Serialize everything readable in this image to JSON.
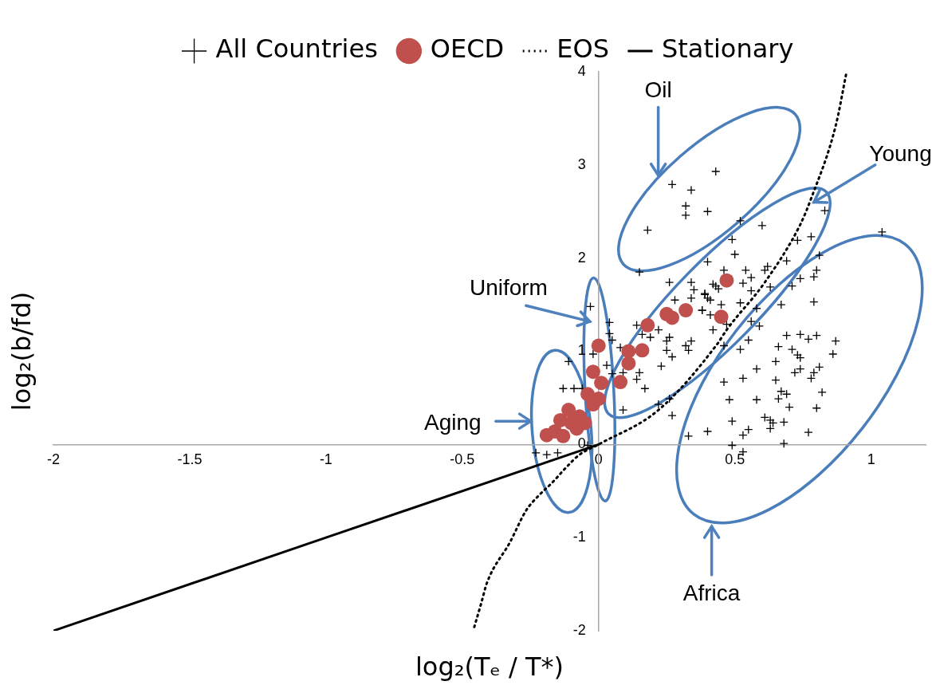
{
  "chart_data": {
    "type": "scatter",
    "xlabel": "log₂(Tₑ / T*)",
    "ylabel": "log₂(b/fd)",
    "xlim": [
      -2,
      1.2
    ],
    "xticks": [
      -2,
      -1.5,
      -1,
      -0.5,
      0,
      0.5,
      1
    ],
    "ylim": [
      -2,
      4
    ],
    "yticks": [
      -2,
      -1,
      0,
      1,
      2,
      3,
      4
    ],
    "grid": false,
    "legend": "top",
    "annotations": [
      "Oil",
      {
        "text": "Young",
        "x": 0.79,
        "y": 2.6
      },
      "Uniform",
      "Aging",
      "Africa"
    ],
    "series": [
      {
        "name": "All Countries",
        "marker": "cross",
        "color": "#000000",
        "x": [
          0.49,
          0.5,
          0.4,
          0.46,
          0.54,
          0.62,
          0.61,
          0.69,
          0.78,
          0.81,
          0.8,
          0.79,
          0.56,
          0.53,
          0.43,
          0.44,
          0.39,
          0.41,
          0.56,
          0.63,
          0.71,
          0.74,
          0.52,
          0.45,
          0.38,
          0.41,
          0.58,
          0.67,
          0.79,
          0.47,
          0.42,
          0.56,
          0.59,
          0.55,
          0.46,
          0.52,
          0.69,
          0.74,
          0.77,
          0.8,
          0.87,
          0.86,
          0.66,
          0.71,
          0.73,
          0.74,
          0.81,
          0.74,
          0.72,
          0.79,
          0.78,
          0.65,
          0.58,
          0.53,
          0.46,
          0.65,
          0.82,
          0.67,
          0.69,
          0.66,
          0.48,
          0.58,
          0.7,
          0.8,
          0.61,
          0.63,
          0.64,
          0.68,
          0.49,
          0.63,
          0.55,
          0.53,
          0.4,
          0.77,
          0.49,
          0.53,
          0.68,
          1.04,
          0.43,
          0.27,
          0.34,
          0.32,
          0.32,
          0.4,
          0.18,
          0.15,
          0.52,
          0.6,
          0.83,
          0.73,
          0.26,
          0.34,
          0.35,
          0.42,
          0.28,
          0.34,
          0.39,
          0.4,
          0.38,
          -0.03,
          0.04,
          0.04,
          0.05,
          0.14,
          0.16,
          0.19,
          0.22,
          0.26,
          0.25,
          0.25,
          0.27,
          0.32,
          0.33,
          0.34,
          0.08,
          -0.02,
          -0.11,
          0.03,
          0.23,
          0.05,
          0.09,
          0.15,
          0.14,
          0.17,
          -0.13,
          -0.09,
          -0.06,
          0.26,
          0.22,
          0.27,
          0.09,
          0.33,
          -0.23,
          -0.19,
          -0.15,
          -0.04
        ],
        "values": [
          2.2,
          2.04,
          1.96,
          1.87,
          1.87,
          1.91,
          1.87,
          1.97,
          2.23,
          2.03,
          1.87,
          1.8,
          1.79,
          1.73,
          1.7,
          1.67,
          1.61,
          1.55,
          1.65,
          1.69,
          1.7,
          1.78,
          1.52,
          1.5,
          1.44,
          1.39,
          1.46,
          1.5,
          1.53,
          1.29,
          1.23,
          1.32,
          1.27,
          1.12,
          1.06,
          1.02,
          1.17,
          1.18,
          1.13,
          1.17,
          1.11,
          0.97,
          1.05,
          1.02,
          0.96,
          0.93,
          0.83,
          0.81,
          0.77,
          0.77,
          0.71,
          0.89,
          0.81,
          0.71,
          0.67,
          0.69,
          0.56,
          0.57,
          0.54,
          0.49,
          0.48,
          0.48,
          0.4,
          0.39,
          0.29,
          0.26,
          0.23,
          0.24,
          0.25,
          0.17,
          0.16,
          0.1,
          0.14,
          0.13,
          -0.01,
          -0.08,
          0.01,
          2.28,
          2.93,
          2.79,
          2.73,
          2.56,
          2.46,
          2.5,
          2.3,
          1.85,
          2.4,
          2.35,
          2.51,
          2.19,
          1.74,
          1.74,
          1.66,
          1.72,
          1.55,
          1.57,
          1.62,
          1.57,
          1.44,
          1.48,
          1.31,
          1.19,
          1.12,
          1.28,
          1.18,
          1.15,
          1.23,
          1.15,
          1.11,
          1.01,
          0.94,
          1.06,
          1.01,
          1.11,
          1.04,
          0.97,
          0.89,
          0.85,
          0.84,
          0.76,
          0.77,
          0.77,
          0.7,
          0.6,
          0.6,
          0.6,
          0.6,
          0.49,
          0.43,
          0.31,
          0.37,
          0.09,
          -0.09,
          -0.11,
          -0.09,
          -0.01
        ]
      },
      {
        "name": "OECD",
        "marker": "circle",
        "color": "#c0504d",
        "x": [
          0.0,
          0.11,
          0.11,
          0.16,
          0.18,
          0.25,
          0.27,
          0.32,
          0.08,
          -0.02,
          0.01,
          0.0,
          -0.04,
          -0.02,
          -0.11,
          -0.07,
          -0.14,
          -0.1,
          -0.05,
          -0.19,
          -0.13,
          -0.16,
          -0.08,
          0.47,
          0.45
        ],
        "values": [
          1.06,
          1.0,
          0.87,
          1.01,
          1.28,
          1.4,
          1.36,
          1.44,
          0.67,
          0.78,
          0.66,
          0.49,
          0.54,
          0.43,
          0.37,
          0.3,
          0.26,
          0.23,
          0.23,
          0.1,
          0.09,
          0.14,
          0.17,
          1.76,
          1.37
        ]
      },
      {
        "name": "EOS",
        "type": "line",
        "line_style": "dotted",
        "color": "#000000",
        "x": [
          -0.456,
          -0.43,
          -0.41,
          -0.325,
          -0.266,
          -0.22,
          -0.17,
          -0.12,
          -0.07,
          0,
          0.22,
          0.436,
          0.47,
          0.61,
          0.74,
          0.78,
          0.87,
          0.91
        ],
        "values": [
          -1.96,
          -1.7,
          -1.49,
          -1.05,
          -0.71,
          -0.55,
          -0.41,
          -0.25,
          -0.11,
          0,
          0.37,
          1.08,
          1.23,
          1.74,
          2.36,
          2.64,
          3.42,
          4.0
        ]
      },
      {
        "name": "Stationary",
        "type": "line",
        "line_style": "solid",
        "color": "#000000",
        "x": [
          -2,
          0
        ],
        "values": [
          -2,
          0
        ]
      }
    ]
  }
}
